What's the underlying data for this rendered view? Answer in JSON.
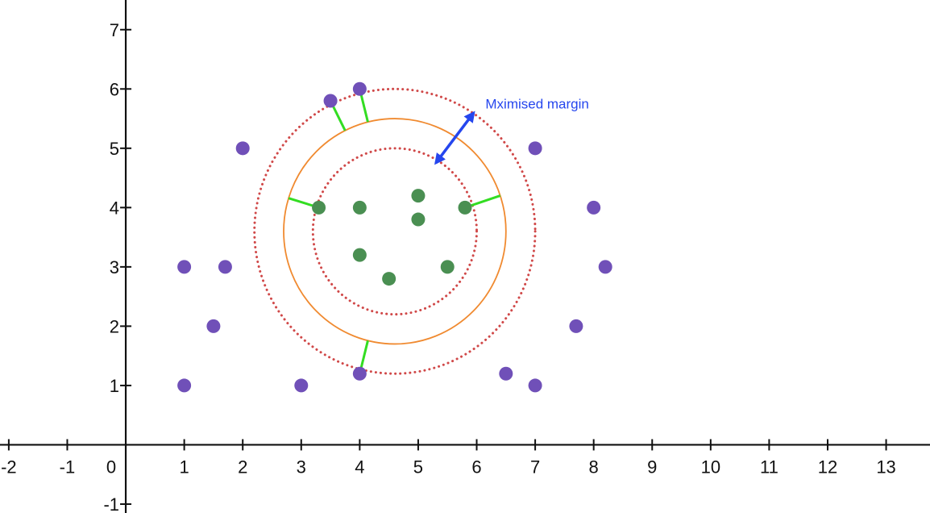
{
  "chart_data": {
    "type": "scatter",
    "title": "",
    "xlabel": "",
    "ylabel": "",
    "xlim": [
      -2.15,
      13.75
    ],
    "ylim": [
      -1.15,
      7.5
    ],
    "x_ticks": [
      -2,
      -1,
      0,
      1,
      2,
      3,
      4,
      5,
      6,
      7,
      8,
      9,
      10,
      11,
      12,
      13
    ],
    "y_ticks": [
      -1,
      0,
      1,
      2,
      3,
      4,
      5,
      6,
      7
    ],
    "x_tick_labels": [
      "-2",
      "-1",
      "0",
      "1",
      "2",
      "3",
      "4",
      "5",
      "6",
      "7",
      "8",
      "9",
      "10",
      "11",
      "12",
      "13"
    ],
    "y_tick_labels": [
      "-1",
      "",
      "1",
      "2",
      "3",
      "4",
      "5",
      "6",
      "7"
    ],
    "grid": false,
    "series": [
      {
        "color": "#7050b8",
        "points": [
          {
            "x": 1,
            "y": 1
          },
          {
            "x": 1,
            "y": 3
          },
          {
            "x": 1.5,
            "y": 2
          },
          {
            "x": 1.7,
            "y": 3
          },
          {
            "x": 2,
            "y": 5
          },
          {
            "x": 3,
            "y": 1
          },
          {
            "x": 3.5,
            "y": 5.8
          },
          {
            "x": 4,
            "y": 6
          },
          {
            "x": 4,
            "y": 1.2
          },
          {
            "x": 6.5,
            "y": 1.2
          },
          {
            "x": 7,
            "y": 1
          },
          {
            "x": 7,
            "y": 5
          },
          {
            "x": 7.7,
            "y": 2
          },
          {
            "x": 8,
            "y": 4
          },
          {
            "x": 8.2,
            "y": 3
          }
        ]
      },
      {
        "color": "#4a8f52",
        "points": [
          {
            "x": 3.3,
            "y": 4
          },
          {
            "x": 4,
            "y": 4
          },
          {
            "x": 4,
            "y": 3.2
          },
          {
            "x": 4.5,
            "y": 2.8
          },
          {
            "x": 5,
            "y": 4.2
          },
          {
            "x": 5,
            "y": 3.8
          },
          {
            "x": 5.5,
            "y": 3
          },
          {
            "x": 5.8,
            "y": 4
          }
        ]
      }
    ],
    "circles": [
      {
        "role": "decision boundary",
        "cx": 4.6,
        "cy": 3.6,
        "r": 1.9,
        "color": "#f08a30",
        "style": "solid"
      },
      {
        "role": "outer margin",
        "cx": 4.6,
        "cy": 3.6,
        "r": 2.4,
        "color": "#d04848",
        "style": "dotted"
      },
      {
        "role": "inner margin",
        "cx": 4.6,
        "cy": 3.6,
        "r": 1.4,
        "color": "#d04848",
        "style": "dotted"
      }
    ],
    "support_vector_lines": {
      "color": "#33dd22",
      "points": [
        {
          "x": 3.5,
          "y": 5.8
        },
        {
          "x": 4,
          "y": 6
        },
        {
          "x": 3.3,
          "y": 4
        },
        {
          "x": 5.8,
          "y": 4
        },
        {
          "x": 4,
          "y": 1.2
        }
      ]
    },
    "annotation": {
      "text": "Mximised margin",
      "color": "#2546ee",
      "arrow_from": {
        "x": 5.3,
        "y": 4.75
      },
      "arrow_to": {
        "x": 5.95,
        "y": 5.6
      },
      "text_at": {
        "x": 6.15,
        "y": 5.75
      }
    }
  }
}
